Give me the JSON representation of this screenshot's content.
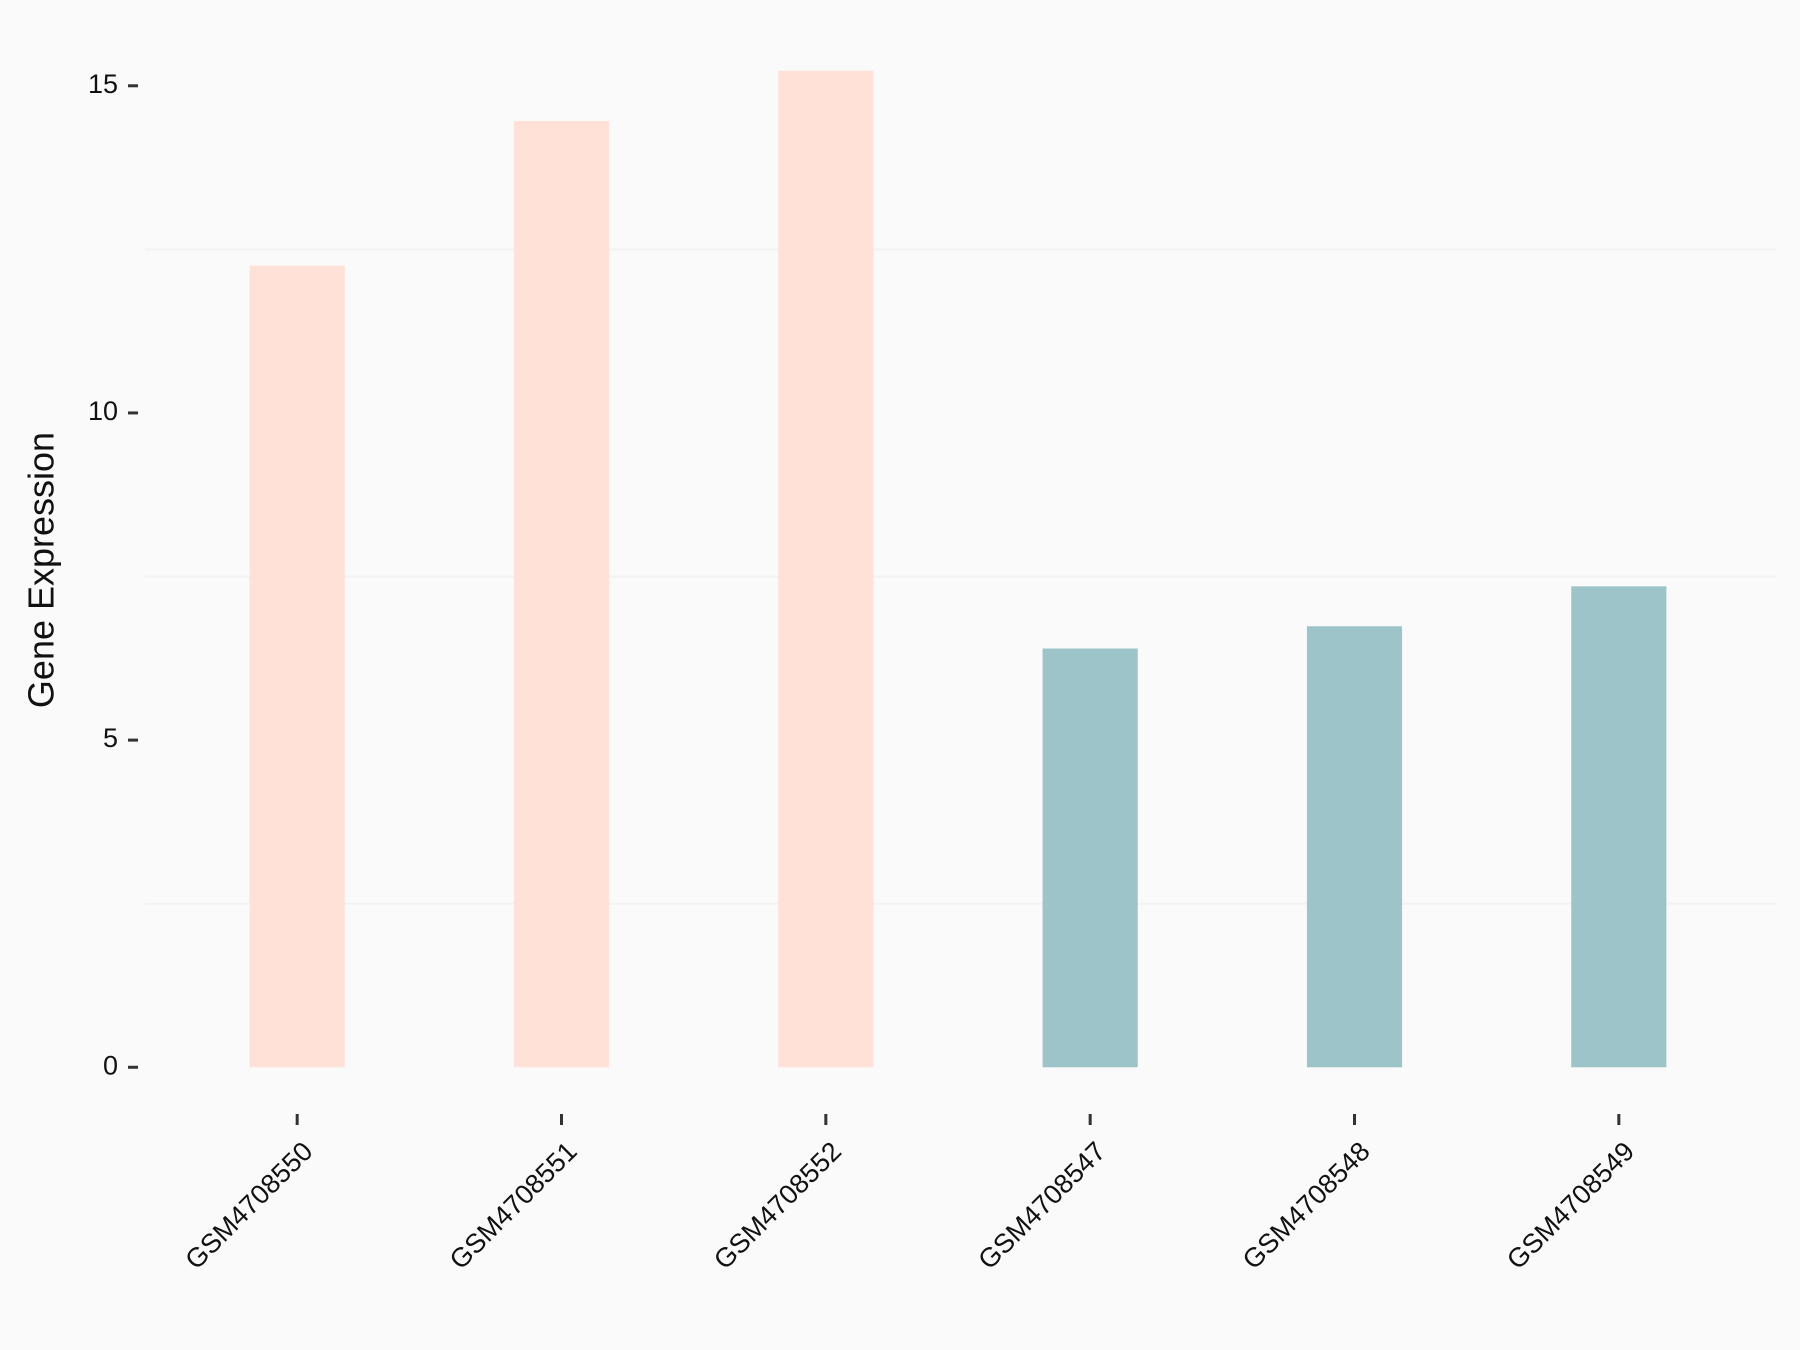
{
  "chart_data": {
    "type": "bar",
    "y_label": "Gene Expression",
    "categories": [
      "GSM4708550",
      "GSM4708551",
      "GSM4708552",
      "GSM4708547",
      "GSM4708548",
      "GSM4708549"
    ],
    "values": [
      12.25,
      14.46,
      15.23,
      6.4,
      6.74,
      7.35
    ],
    "colors": [
      "#ffe1d7",
      "#ffe1d7",
      "#ffe1d7",
      "#9dc4c8",
      "#9dc4c8",
      "#9dc4c8"
    ],
    "ylim": [
      -0.76,
      15.99
    ],
    "yticks": [
      0,
      5,
      10,
      15
    ],
    "minor_gridlines": [
      2.5,
      7.5,
      12.5
    ],
    "grid": true
  }
}
